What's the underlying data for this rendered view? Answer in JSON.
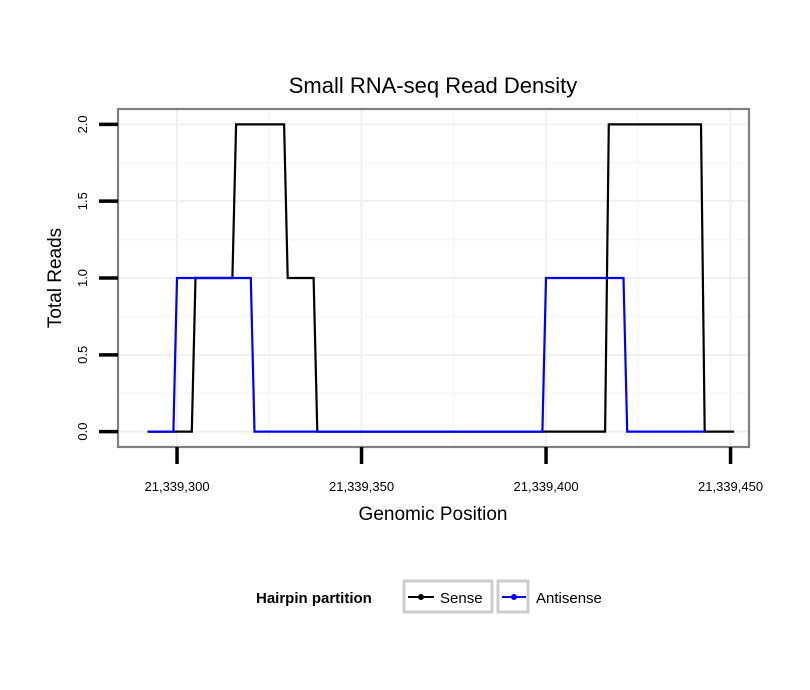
{
  "chart_data": {
    "type": "line",
    "title": "Small RNA-seq Read Density",
    "xlabel": "Genomic Position",
    "ylabel": "Total Reads",
    "xlim": [
      21339284,
      21339455
    ],
    "ylim": [
      -0.1,
      2.1
    ],
    "x_ticks": [
      21339300,
      21339350,
      21339400,
      21339450
    ],
    "x_tick_labels": [
      "21,339,300",
      "21,339,350",
      "21,339,400",
      "21,339,450"
    ],
    "y_ticks": [
      0,
      0.5,
      1,
      1.5,
      2
    ],
    "y_tick_labels": [
      "0.0",
      "0.5",
      "1.0",
      "1.5",
      "2.0"
    ],
    "grid": true,
    "legend": {
      "title": "Hairpin partition",
      "position": "bottom",
      "entries": [
        "Sense",
        "Antisense"
      ]
    },
    "series": [
      {
        "name": "Sense",
        "color": "#000000",
        "x": [
          21339292,
          21339304,
          21339305,
          21339315,
          21339316,
          21339329,
          21339330,
          21339337,
          21339338,
          21339400,
          21339416,
          21339417,
          21339442,
          21339443,
          21339451
        ],
        "y": [
          0,
          0,
          1,
          1,
          2,
          2,
          1,
          1,
          0,
          0,
          0,
          2,
          2,
          0,
          0
        ]
      },
      {
        "name": "Antisense",
        "color": "#0000ee",
        "x": [
          21339292,
          21339299,
          21339300,
          21339320,
          21339321,
          21339399,
          21339400,
          21339421,
          21339422,
          21339443
        ],
        "y": [
          0,
          0,
          1,
          1,
          0,
          0,
          1,
          1,
          0,
          0
        ]
      }
    ]
  }
}
